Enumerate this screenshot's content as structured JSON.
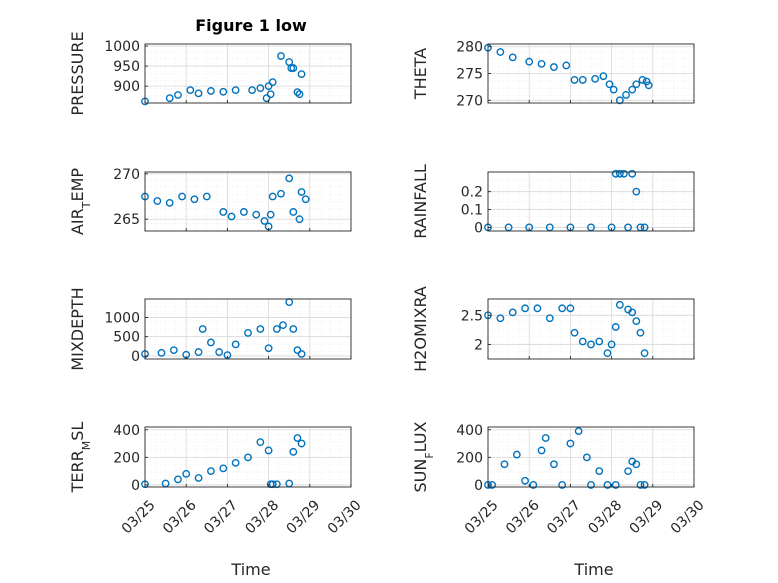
{
  "figure": {
    "title": "Figure 1 low",
    "colors": {
      "marker": "#0072bd",
      "axis": "#262626",
      "grid": "#d9d9d9",
      "minor_grid": "#ebebeb"
    },
    "x_ticks": [
      "03/25",
      "03/26",
      "03/27",
      "03/28",
      "03/29",
      "03/30"
    ],
    "x_label": "Time"
  },
  "chart_data": [
    {
      "type": "scatter",
      "ylabel": "PRESSURE",
      "xlabel": "",
      "xlim": [
        0,
        5
      ],
      "ylim": [
        858,
        1005
      ],
      "yticks": [
        900,
        950,
        1000
      ],
      "ytick_labels": [
        "900",
        "950",
        "1000"
      ],
      "grid": true,
      "series": [
        {
          "x": [
            0,
            0.6,
            0.8,
            1.1,
            1.3,
            1.6,
            1.9,
            2.2,
            2.6,
            2.8,
            2.95,
            3.0,
            3.05,
            3.1,
            3.3,
            3.5,
            3.55,
            3.6,
            3.7,
            3.75,
            3.8
          ],
          "y": [
            862,
            870,
            878,
            890,
            882,
            888,
            886,
            890,
            890,
            895,
            870,
            900,
            880,
            910,
            975,
            960,
            945,
            945,
            885,
            880,
            930
          ]
        }
      ]
    },
    {
      "type": "scatter",
      "ylabel": "THETA",
      "xlabel": "",
      "xlim": [
        0,
        5
      ],
      "ylim": [
        269.5,
        280.5
      ],
      "yticks": [
        270,
        275,
        280
      ],
      "ytick_labels": [
        "270",
        "275",
        "280"
      ],
      "grid": true,
      "series": [
        {
          "x": [
            0,
            0.3,
            0.6,
            1.0,
            1.3,
            1.6,
            1.9,
            2.1,
            2.3,
            2.6,
            2.8,
            2.95,
            3.05,
            3.2,
            3.35,
            3.5,
            3.6,
            3.75,
            3.85,
            3.9
          ],
          "y": [
            279.8,
            279,
            278,
            277.2,
            276.8,
            276.2,
            276.5,
            273.8,
            273.8,
            274,
            274.5,
            273,
            272,
            270,
            271,
            272,
            273,
            273.8,
            273.5,
            272.8
          ]
        }
      ]
    },
    {
      "type": "scatter",
      "ylabel": "AIR_TEMP",
      "xlabel": "",
      "xlim": [
        0,
        5
      ],
      "ylim": [
        263.7,
        270.2
      ],
      "yticks": [
        265,
        270
      ],
      "ytick_labels": [
        "265",
        "270"
      ],
      "grid": true,
      "series": [
        {
          "x": [
            0,
            0.3,
            0.6,
            0.9,
            1.2,
            1.5,
            1.9,
            2.1,
            2.4,
            2.7,
            2.9,
            3.0,
            3.05,
            3.1,
            3.3,
            3.5,
            3.6,
            3.75,
            3.8,
            3.9
          ],
          "y": [
            267.5,
            267,
            266.8,
            267.5,
            267.2,
            267.5,
            265.8,
            265.3,
            265.8,
            265.5,
            264.8,
            264.2,
            265.5,
            267.5,
            267.8,
            269.5,
            265.8,
            265,
            268,
            267.2
          ]
        }
      ]
    },
    {
      "type": "scatter",
      "ylabel": "RAINFALL",
      "xlabel": "",
      "xlim": [
        0,
        5
      ],
      "ylim": [
        -0.02,
        0.31
      ],
      "yticks": [
        0,
        0.1,
        0.2
      ],
      "ytick_labels": [
        "0",
        "0.1",
        "0.2"
      ],
      "grid": true,
      "series": [
        {
          "x": [
            0,
            0.5,
            1.0,
            1.5,
            2.0,
            2.5,
            3.0,
            3.1,
            3.2,
            3.3,
            3.4,
            3.5,
            3.6,
            3.7,
            3.8
          ],
          "y": [
            0,
            0,
            0,
            0,
            0,
            0,
            0,
            0.3,
            0.3,
            0.3,
            0,
            0.3,
            0.2,
            0,
            0
          ]
        }
      ]
    },
    {
      "type": "scatter",
      "ylabel": "MIXDEPTH",
      "xlabel": "",
      "xlim": [
        0,
        5
      ],
      "ylim": [
        -80,
        1480
      ],
      "yticks": [
        0,
        500,
        1000
      ],
      "ytick_labels": [
        "0",
        "500",
        "1000"
      ],
      "grid": true,
      "series": [
        {
          "x": [
            0,
            0.4,
            0.7,
            1.0,
            1.3,
            1.4,
            1.6,
            1.8,
            2.0,
            2.2,
            2.5,
            2.8,
            3.0,
            3.2,
            3.35,
            3.5,
            3.6,
            3.7,
            3.8
          ],
          "y": [
            50,
            80,
            150,
            30,
            100,
            700,
            350,
            100,
            20,
            300,
            600,
            700,
            200,
            700,
            800,
            1400,
            700,
            150,
            50
          ]
        }
      ]
    },
    {
      "type": "scatter",
      "ylabel": "H2OMIXRA",
      "xlabel": "",
      "xlim": [
        0,
        5
      ],
      "ylim": [
        1.75,
        2.78
      ],
      "yticks": [
        2,
        2.5
      ],
      "ytick_labels": [
        "2",
        "2.5"
      ],
      "grid": true,
      "series": [
        {
          "x": [
            0,
            0.3,
            0.6,
            0.9,
            1.2,
            1.5,
            1.8,
            2.0,
            2.1,
            2.3,
            2.5,
            2.7,
            2.9,
            3.0,
            3.1,
            3.2,
            3.4,
            3.5,
            3.6,
            3.7,
            3.8
          ],
          "y": [
            2.5,
            2.45,
            2.55,
            2.62,
            2.62,
            2.45,
            2.62,
            2.62,
            2.2,
            2.05,
            2.0,
            2.05,
            1.85,
            2.0,
            2.3,
            2.68,
            2.6,
            2.55,
            2.4,
            2.2,
            1.85
          ]
        }
      ]
    },
    {
      "type": "scatter",
      "ylabel": "TERR_MSL",
      "xlabel": "",
      "xlim": [
        0,
        5
      ],
      "ylim": [
        -15,
        420
      ],
      "yticks": [
        0,
        200,
        400
      ],
      "ytick_labels": [
        "0",
        "200",
        "400"
      ],
      "grid": true,
      "series": [
        {
          "x": [
            0,
            0.5,
            0.8,
            1.0,
            1.3,
            1.6,
            1.9,
            2.2,
            2.5,
            2.8,
            3.0,
            3.05,
            3.1,
            3.2,
            3.5,
            3.6,
            3.7,
            3.8
          ],
          "y": [
            5,
            10,
            40,
            80,
            50,
            100,
            120,
            160,
            200,
            310,
            250,
            5,
            5,
            5,
            10,
            240,
            340,
            300
          ]
        }
      ]
    },
    {
      "type": "scatter",
      "ylabel": "SUN_FLUX",
      "xlabel": "",
      "xlim": [
        0,
        5
      ],
      "ylim": [
        -15,
        420
      ],
      "yticks": [
        0,
        200,
        400
      ],
      "ytick_labels": [
        "0",
        "200",
        "400"
      ],
      "grid": true,
      "series": [
        {
          "x": [
            0,
            0.1,
            0.4,
            0.7,
            0.9,
            1.1,
            1.3,
            1.4,
            1.6,
            1.8,
            2.0,
            2.2,
            2.4,
            2.5,
            2.7,
            2.9,
            3.1,
            3.4,
            3.5,
            3.6,
            3.7,
            3.8
          ],
          "y": [
            0,
            0,
            150,
            220,
            30,
            0,
            250,
            340,
            150,
            0,
            300,
            390,
            200,
            0,
            100,
            0,
            0,
            100,
            170,
            150,
            0,
            0
          ]
        }
      ]
    }
  ]
}
